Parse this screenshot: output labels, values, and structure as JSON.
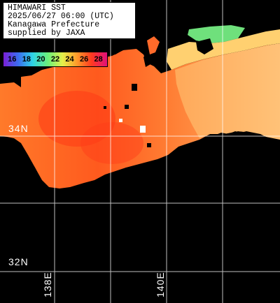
{
  "title_box": {
    "lines": [
      "HIMAWARI SST",
      "2025/06/27 06:00 (UTC)",
      "Kanagawa Prefecture",
      "supplied by JAXA"
    ]
  },
  "legend": {
    "values": [
      "16",
      "18",
      "20",
      "22",
      "24",
      "26",
      "28"
    ],
    "gradient_colors": [
      "#7a1fd6",
      "#3c6cf0",
      "#2ed3e6",
      "#6bf07a",
      "#e6f04a",
      "#ff9a2a",
      "#ff3a20",
      "#e0107a"
    ]
  },
  "grid": {
    "lat_labels": [
      "34N",
      "32N"
    ],
    "lon_labels": [
      "138E",
      "140E"
    ]
  },
  "colors": {
    "land": "#000000",
    "no_data": "#000000",
    "grid": "#ffffff",
    "sst_coastal_warm": "#ff4a1a",
    "sst_offshore": "#ff8a3a",
    "sst_bay_cool": "#70e07a"
  }
}
